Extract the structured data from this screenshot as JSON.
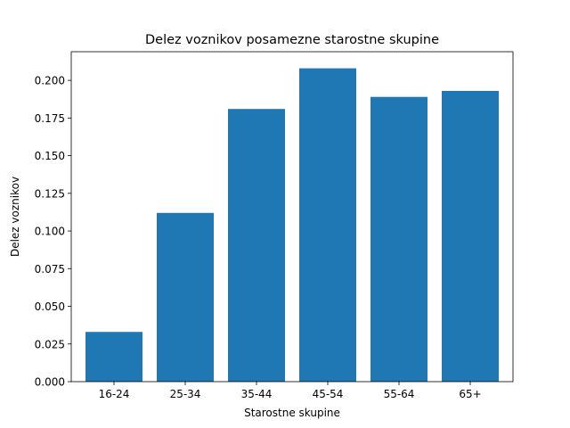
{
  "chart_data": {
    "type": "bar",
    "title": "Delez voznikov posamezne starostne skupine",
    "xlabel": "Starostne skupine",
    "ylabel": "Delez voznikov",
    "categories": [
      "16-24",
      "25-34",
      "35-44",
      "45-54",
      "55-64",
      "65+"
    ],
    "values": [
      0.033,
      0.112,
      0.181,
      0.208,
      0.189,
      0.193
    ],
    "ylim": [
      0,
      0.219
    ],
    "yticks": [
      "0.000",
      "0.025",
      "0.050",
      "0.075",
      "0.100",
      "0.125",
      "0.150",
      "0.175",
      "0.200"
    ],
    "grid": false,
    "bar_color": "#1f77b4"
  }
}
